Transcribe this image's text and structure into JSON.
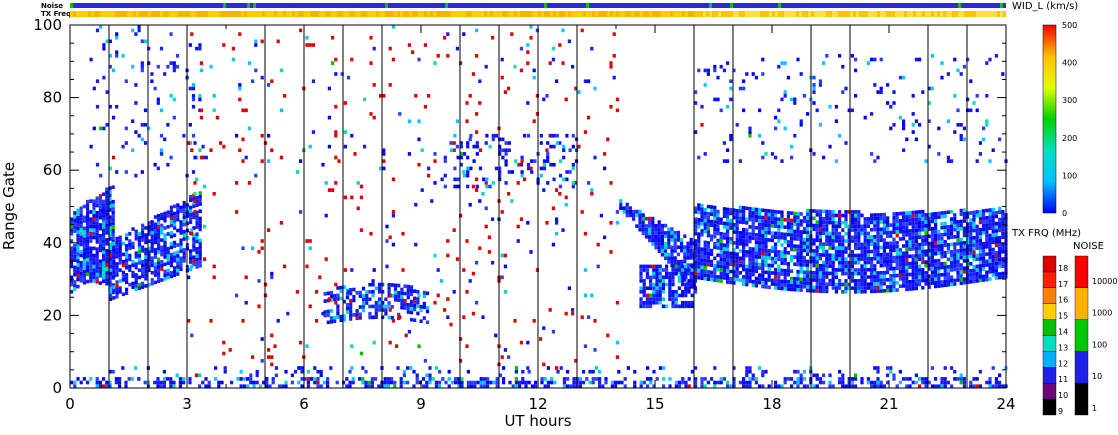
{
  "strips": {
    "noise_label": "Noise",
    "txfreq_label": "TX Freq"
  },
  "chart_data": {
    "type": "heatmap",
    "title": "",
    "xlabel": "UT hours",
    "ylabel": "Range Gate",
    "xlim": [
      0,
      24
    ],
    "ylim": [
      0,
      100
    ],
    "x_ticks": [
      0,
      3,
      6,
      9,
      12,
      15,
      18,
      21,
      24
    ],
    "y_ticks": [
      0,
      20,
      40,
      60,
      80,
      100
    ],
    "x_tick_labels": [
      "0",
      "3",
      "6",
      "9",
      "12",
      "15",
      "18",
      "21",
      "24"
    ],
    "y_tick_labels": [
      "0",
      "20",
      "40",
      "60",
      "80",
      "100"
    ],
    "scan_boundaries_ut": [
      1,
      2,
      3,
      5,
      6,
      7,
      8,
      10,
      11,
      12,
      13,
      16,
      17,
      19,
      20,
      22,
      23
    ],
    "main_colorbar": {
      "title": "WID_L (km/s)",
      "range": [
        0,
        500
      ],
      "ticks": [
        0,
        100,
        200,
        300,
        400,
        500
      ],
      "tick_labels": [
        "0",
        "100",
        "200",
        "300",
        "400",
        "500"
      ],
      "colors": [
        "#0000ff",
        "#00c0ff",
        "#00e0c0",
        "#00d000",
        "#e0ff00",
        "#ffc000",
        "#ff0000"
      ]
    },
    "txfreq_colorbar": {
      "title": "TX FRQ (MHz)",
      "levels": [
        "9",
        "10",
        "11",
        "12",
        "13",
        "14",
        "15",
        "16",
        "17",
        "18"
      ],
      "colors": [
        "#000000",
        "#6a0a7a",
        "#2020ee",
        "#00b0ff",
        "#00e0c0",
        "#00c000",
        "#ffd000",
        "#ff8000",
        "#ff2000",
        "#dd0000"
      ]
    },
    "noise_colorbar": {
      "title": "NOISE",
      "levels": [
        "1",
        "10",
        "100",
        "1000",
        "10000"
      ],
      "colors": [
        "#000000",
        "#2020ee",
        "#00c800",
        "#ffb000",
        "#ff0000"
      ]
    },
    "regions": [
      {
        "name": "early broad echo",
        "ut": [
          0.0,
          1.1
        ],
        "gates": [
          26,
          56
        ],
        "dominant_width_kms": 0
      },
      {
        "name": "morning band",
        "ut": [
          1.0,
          3.3
        ],
        "gates": [
          22,
          50
        ],
        "dominant_width_kms": 0
      },
      {
        "name": "afternoon arc",
        "ut": [
          6.5,
          9.2
        ],
        "gates": [
          15,
          30
        ],
        "dominant_width_kms": 0
      },
      {
        "name": "descending echo",
        "ut": [
          14.0,
          16.0
        ],
        "gates": [
          22,
          52
        ],
        "dominant_width_kms": 0
      },
      {
        "name": "evening band",
        "ut": [
          16.0,
          24.0
        ],
        "gates": [
          23,
          52
        ],
        "dominant_width_kms": 0
      },
      {
        "name": "near-range ground scatter",
        "ut": [
          0.0,
          24.0
        ],
        "gates": [
          0,
          5
        ],
        "dominant_width_kms": 0
      },
      {
        "name": "far-range patches",
        "ut": [
          16.0,
          24.0
        ],
        "gates": [
          60,
          92
        ],
        "dominant_width_kms": 100
      },
      {
        "name": "scattered high-width echoes",
        "ut": [
          3.0,
          14.0
        ],
        "gates": [
          0,
          100
        ],
        "dominant_width_kms": 500
      }
    ]
  }
}
